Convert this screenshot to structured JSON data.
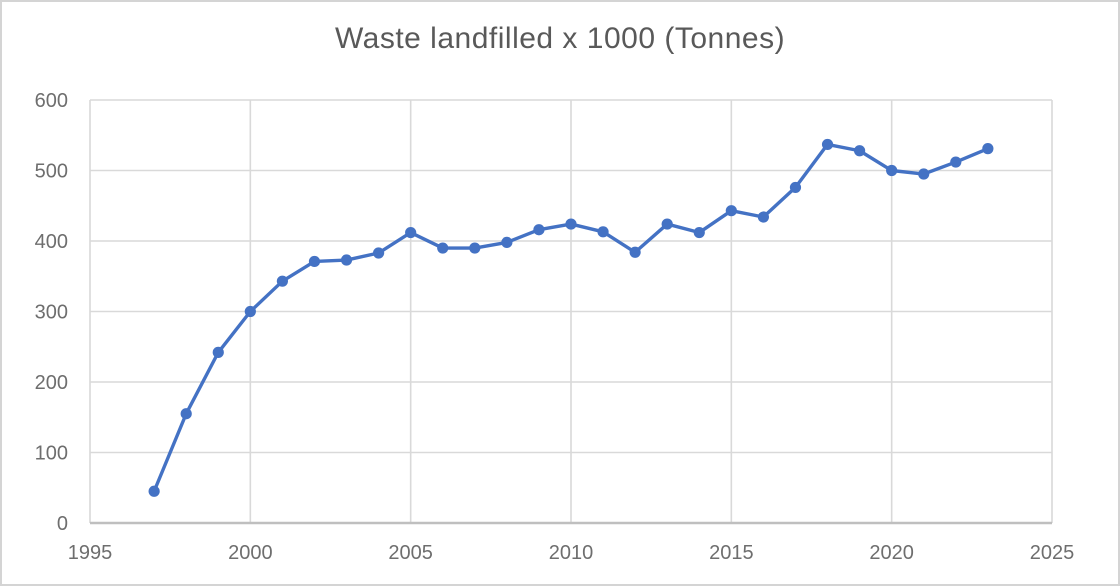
{
  "chart_data": {
    "type": "line",
    "title": "Waste landfilled x 1000 (Tonnes)",
    "series": [
      {
        "name": "Waste landfilled x 1000 (Tonnes)",
        "x": [
          1997,
          1998,
          1999,
          2000,
          2001,
          2002,
          2003,
          2004,
          2005,
          2006,
          2007,
          2008,
          2009,
          2010,
          2011,
          2012,
          2013,
          2014,
          2015,
          2016,
          2017,
          2018,
          2019,
          2020,
          2021,
          2022,
          2023
        ],
        "values": [
          45,
          155,
          242,
          300,
          343,
          371,
          373,
          383,
          412,
          390,
          390,
          398,
          416,
          424,
          413,
          384,
          424,
          412,
          443,
          434,
          476,
          537,
          528,
          500,
          495,
          512,
          531
        ]
      }
    ],
    "xlabel": "",
    "ylabel": "",
    "xlim": [
      1995,
      2025
    ],
    "ylim": [
      0,
      600
    ],
    "x_ticks": [
      1995,
      2000,
      2005,
      2010,
      2015,
      2020,
      2025
    ],
    "y_ticks": [
      0,
      100,
      200,
      300,
      400,
      500,
      600
    ],
    "grid": true,
    "legend_position": "none",
    "marker": "circle",
    "colors": {
      "line": "#4472C4",
      "marker": "#4472C4",
      "gridline": "#d9d9d9",
      "axis_line": "#bfbfbf",
      "tick_text": "#6e6e6e",
      "title_text": "#595959",
      "background": "#ffffff",
      "frame_border": "#d4d4d4"
    }
  }
}
